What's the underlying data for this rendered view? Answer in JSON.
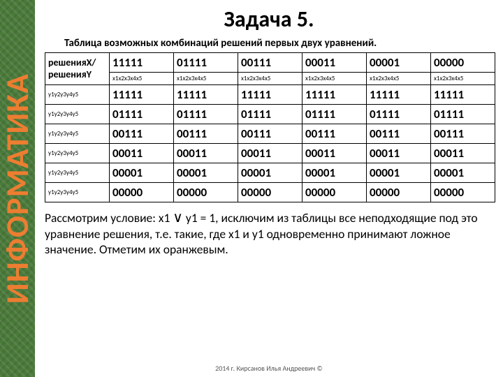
{
  "sidebar": {
    "label": "ИНФОРМАТИКА",
    "bg": "#4a7a3a",
    "text_color": "#ed7d31"
  },
  "title": "Задача 5.",
  "subtitle": "Таблица возможных комбинаций решений первых двух уравнений.",
  "table": {
    "corner_x": "решенияX",
    "corner_slash": "/",
    "corner_y": "решенияY",
    "col_values": [
      "11111",
      "01111",
      "00111",
      "00011",
      "00001",
      "00000"
    ],
    "col_sub": [
      "x1x2x3x4x5",
      "x1x2x3x4x5",
      "x1x2x3x4x5",
      "x1x2x3x4x5",
      "x1x2x3x4x5",
      "x1x2x3x4x5"
    ],
    "row_heads": [
      "y1y2y3y4y5",
      "y1y2y3y4y5",
      "y1y2y3y4y5",
      "y1y2y3y4y5",
      "y1y2y3y4y5",
      "y1y2y3y4y5"
    ],
    "rows": [
      [
        "11111",
        "11111",
        "11111",
        "11111",
        "11111",
        "11111"
      ],
      [
        "01111",
        "01111",
        "01111",
        "01111",
        "01111",
        "01111"
      ],
      [
        "00111",
        "00111",
        "00111",
        "00111",
        "00111",
        "00111"
      ],
      [
        "00011",
        "00011",
        "00011",
        "00011",
        "00011",
        "00011"
      ],
      [
        "00001",
        "00001",
        "00001",
        "00001",
        "00001",
        "00001"
      ],
      [
        "00000",
        "00000",
        "00000",
        "00000",
        "00000",
        "00000"
      ]
    ]
  },
  "paragraph": {
    "p1": "Рассмотрим условие: x1 ",
    "disj": "∨",
    "p2": " y1 = 1, исключим из таблицы все неподходящие под это уравнение решения, т.е. такие, где x1 и y1 одновременно принимают ложное значение. Отметим их оранжевым."
  },
  "footer": "2014 г. Кирсанов Илья Андреевич ©"
}
